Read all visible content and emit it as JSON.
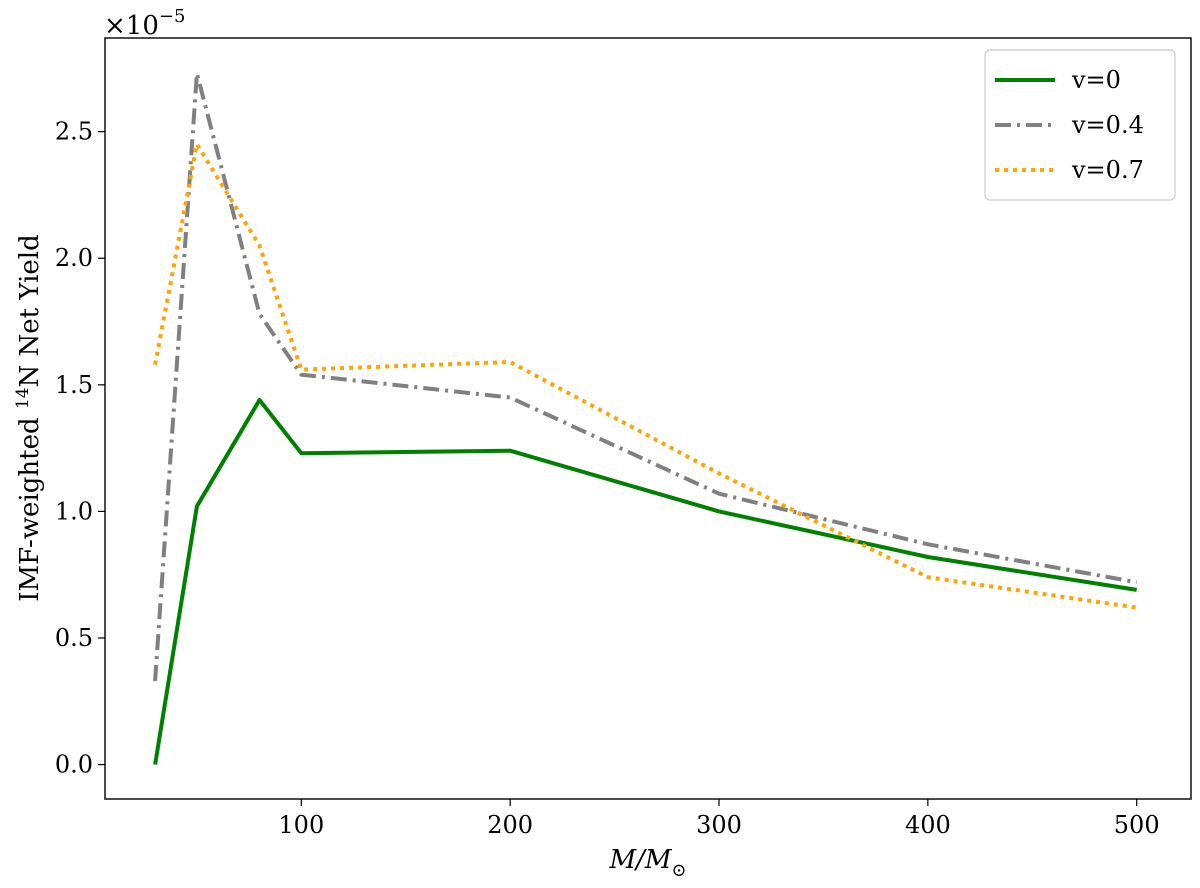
{
  "chart_data": {
    "type": "line",
    "x": [
      30,
      50,
      80,
      100,
      200,
      300,
      400,
      500
    ],
    "series": [
      {
        "name": "v=0",
        "color": "#008000",
        "dash": "solid",
        "values": [
          0.0,
          1.02,
          1.44,
          1.23,
          1.24,
          1.0,
          0.82,
          0.69
        ]
      },
      {
        "name": "v=0.4",
        "color": "#808080",
        "dash": "dashdot",
        "values": [
          0.33,
          2.73,
          1.78,
          1.54,
          1.45,
          1.07,
          0.87,
          0.72
        ]
      },
      {
        "name": "v=0.7",
        "color": "#FFA500",
        "dash": "dotted",
        "values": [
          1.58,
          2.45,
          2.05,
          1.56,
          1.59,
          1.15,
          0.74,
          0.62
        ]
      }
    ],
    "xlabel": {
      "base": "M/M",
      "subscript": "⊙"
    },
    "ylabel": {
      "prefix": "IMF-weighted ",
      "superscript": "14",
      "suffix": "N Net Yield"
    },
    "y_offset": {
      "base": "×10",
      "exponent": "−5"
    },
    "xticks": [
      100,
      200,
      300,
      400,
      500
    ],
    "xtick_labels": [
      "100",
      "200",
      "300",
      "400",
      "500"
    ],
    "yticks": [
      0.0,
      0.5,
      1.0,
      1.5,
      2.0,
      2.5
    ],
    "ytick_labels": [
      "0.0",
      "0.5",
      "1.0",
      "1.5",
      "2.0",
      "2.5"
    ],
    "xlim": [
      6,
      526
    ],
    "ylim": [
      -0.136,
      2.87
    ],
    "grid": false,
    "legend_position": "upper right"
  }
}
